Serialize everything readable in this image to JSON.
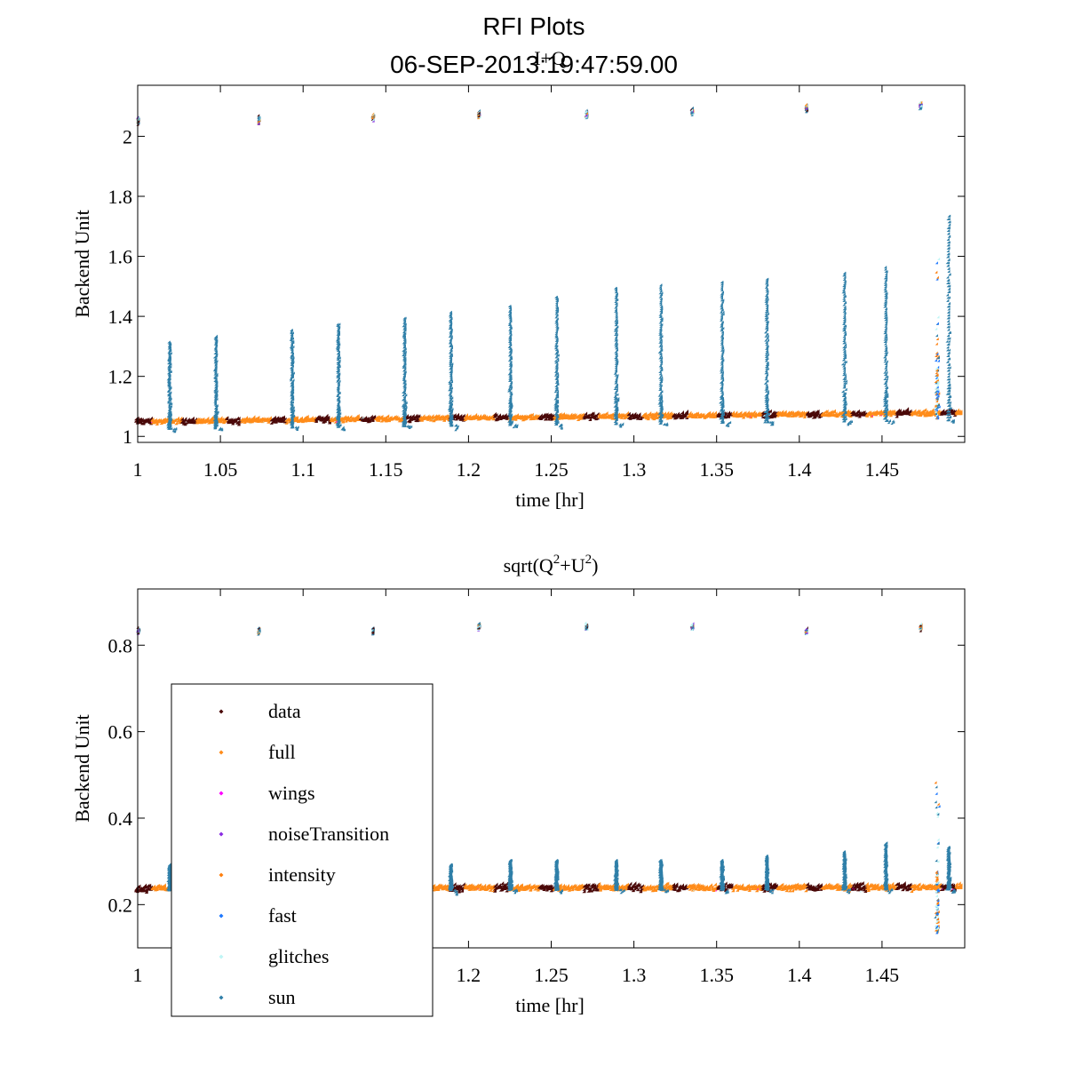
{
  "figure": {
    "title": "RFI Plots",
    "subtitle": "06-SEP-2013:19:47:59.00"
  },
  "colors": {
    "data": "#4a0808",
    "full": "#ff8c1a",
    "wings": "#ff00ff",
    "noiseTransition": "#8a2be2",
    "intensity": "#ff7f0e",
    "fast": "#1e78ff",
    "glitches": "#bff5f5",
    "sun": "#2f7fa8"
  },
  "legend": {
    "placement": "inside lower-left of second panel",
    "entries": [
      "data",
      "full",
      "wings",
      "noiseTransition",
      "intensity",
      "fast",
      "glitches",
      "sun"
    ]
  },
  "chart_data": [
    {
      "type": "scatter",
      "title": "I+Q",
      "title_sup": [],
      "xlabel": "time [hr]",
      "ylabel": "Backend Unit",
      "xlim": [
        1.0,
        1.5
      ],
      "ylim": [
        0.98,
        2.17
      ],
      "xticks": [
        1,
        1.05,
        1.1,
        1.15,
        1.2,
        1.25,
        1.3,
        1.35,
        1.4,
        1.45
      ],
      "xtick_labels": [
        "1",
        "1.05",
        "1.1",
        "1.15",
        "1.2",
        "1.25",
        "1.3",
        "1.35",
        "1.4",
        "1.45"
      ],
      "yticks": [
        1,
        1.2,
        1.4,
        1.6,
        1.8,
        2
      ],
      "ytick_labels": [
        "1",
        "1.2",
        "1.4",
        "1.6",
        "1.8",
        "2"
      ],
      "baseline": {
        "start": 1.045,
        "end": 1.075
      },
      "noise_cal": {
        "times": [
          1.001,
          1.074,
          1.143,
          1.207,
          1.272,
          1.336,
          1.405,
          1.474
        ],
        "levels": [
          2.05,
          2.05,
          2.06,
          2.07,
          2.07,
          2.08,
          2.09,
          2.1
        ]
      },
      "sun_spikes": {
        "times": [
          1.02,
          1.048,
          1.094,
          1.122,
          1.162,
          1.19,
          1.226,
          1.254,
          1.29,
          1.317,
          1.354,
          1.381,
          1.428,
          1.453,
          1.491
        ],
        "peaks": [
          1.31,
          1.33,
          1.35,
          1.37,
          1.39,
          1.41,
          1.43,
          1.46,
          1.49,
          1.5,
          1.51,
          1.52,
          1.54,
          1.56,
          1.73
        ]
      },
      "outliers": [
        [
          1.001,
          1.7
        ],
        [
          1.002,
          1.35
        ],
        [
          1.073,
          1.93
        ],
        [
          1.073,
          1.15
        ],
        [
          1.145,
          1.87
        ],
        [
          1.145,
          1.16
        ],
        [
          1.207,
          2.17
        ],
        [
          1.207,
          1.62
        ],
        [
          1.209,
          1.58
        ],
        [
          1.208,
          0.99
        ],
        [
          1.272,
          1.69
        ],
        [
          1.27,
          1.33
        ],
        [
          1.336,
          1.65
        ],
        [
          1.336,
          2.17
        ],
        [
          1.334,
          1.43
        ],
        [
          1.404,
          1.74
        ],
        [
          1.406,
          1.27
        ],
        [
          1.403,
          1.02
        ],
        [
          1.474,
          2.14
        ],
        [
          1.474,
          2.01
        ]
      ],
      "anomaly": {
        "time": 1.484,
        "range": [
          1.05,
          1.62
        ]
      }
    },
    {
      "type": "scatter",
      "title": "sqrt(Q+U)",
      "title_sup": [
        "2",
        "2"
      ],
      "xlabel": "time [hr]",
      "ylabel": "Backend Unit",
      "xlim": [
        1.0,
        1.5
      ],
      "ylim": [
        0.1,
        0.93
      ],
      "xticks": [
        1,
        1.05,
        1.1,
        1.15,
        1.2,
        1.25,
        1.3,
        1.35,
        1.4,
        1.45
      ],
      "xtick_labels": [
        "1",
        "1.05",
        "1.1",
        "1.15",
        "1.2",
        "1.25",
        "1.3",
        "1.35",
        "1.4",
        "1.45"
      ],
      "yticks": [
        0.2,
        0.4,
        0.6,
        0.8
      ],
      "ytick_labels": [
        "0.2",
        "0.4",
        "0.6",
        "0.8"
      ],
      "baseline": {
        "start": 0.235,
        "end": 0.237
      },
      "noise_cal": {
        "times": [
          1.001,
          1.074,
          1.143,
          1.207,
          1.272,
          1.336,
          1.405,
          1.474
        ],
        "levels": [
          0.83,
          0.83,
          0.83,
          0.84,
          0.84,
          0.84,
          0.83,
          0.84
        ]
      },
      "sun_spikes": {
        "times": [
          1.02,
          1.048,
          1.094,
          1.122,
          1.162,
          1.19,
          1.226,
          1.254,
          1.29,
          1.317,
          1.354,
          1.381,
          1.428,
          1.453,
          1.491
        ],
        "peaks": [
          0.29,
          0.29,
          0.29,
          0.29,
          0.29,
          0.29,
          0.3,
          0.3,
          0.3,
          0.3,
          0.3,
          0.31,
          0.32,
          0.34,
          0.33
        ]
      },
      "outliers": [
        [
          1.001,
          0.9
        ],
        [
          1.002,
          0.5
        ],
        [
          1.073,
          0.73
        ],
        [
          1.145,
          0.89
        ],
        [
          1.145,
          0.78
        ],
        [
          1.207,
          0.93
        ],
        [
          1.207,
          0.42
        ],
        [
          1.209,
          0.38
        ],
        [
          1.272,
          0.92
        ],
        [
          1.272,
          0.47
        ],
        [
          1.27,
          0.17
        ],
        [
          1.336,
          0.92
        ],
        [
          1.336,
          0.77
        ],
        [
          1.334,
          0.42
        ],
        [
          1.404,
          0.9
        ],
        [
          1.406,
          0.5
        ],
        [
          1.403,
          0.16
        ],
        [
          1.474,
          0.89
        ],
        [
          1.474,
          0.75
        ]
      ],
      "anomaly": {
        "time": 1.484,
        "range": [
          0.13,
          0.49
        ]
      }
    }
  ]
}
